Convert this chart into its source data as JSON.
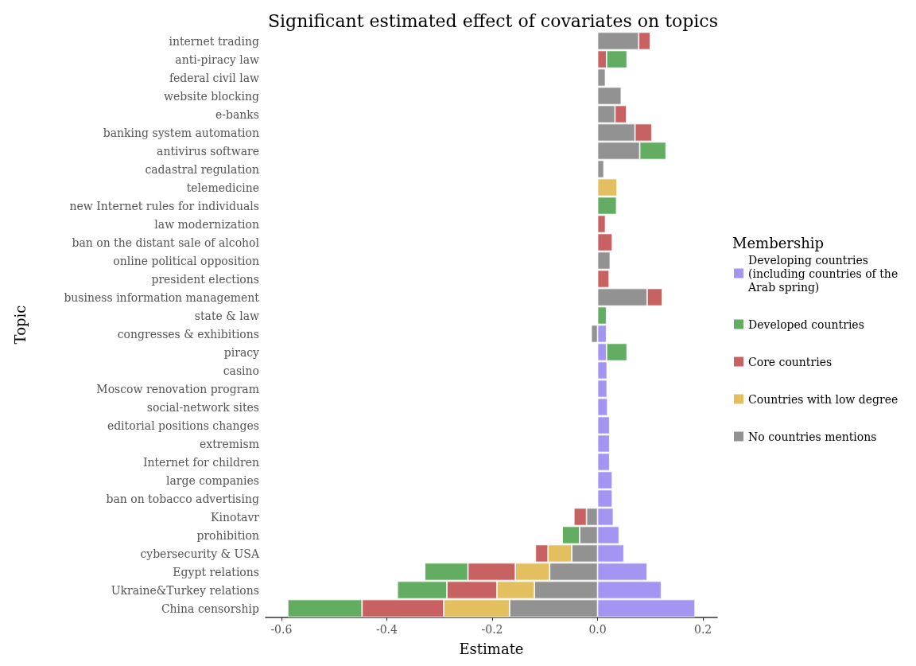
{
  "chart_data": {
    "type": "bar",
    "orientation": "horizontal",
    "stacked": true,
    "title": "Significant estimated effect of covariates on topics",
    "xlabel": "Estimate",
    "ylabel": "Topic",
    "legend_title": "Membership",
    "legend": "right",
    "grid": false,
    "categories": [
      "internet trading",
      "anti-piracy law",
      "federal civil law",
      "website blocking",
      "e-banks",
      "banking system automation",
      "antivirus software",
      "cadastral regulation",
      "telemedicine",
      "new Internet rules for individuals",
      "law modernization",
      "ban on the distant sale of alcohol",
      "online political opposition",
      "president elections",
      "business information management",
      "state & law",
      "congresses & exhibitions",
      "piracy",
      "casino",
      "Moscow renovation program",
      "social-network sites",
      "editorial positions changes",
      "extremism",
      "Internet for children",
      "large companies",
      "ban on tobacco advertising",
      "Kinotavr",
      "prohibition",
      "cybersecurity & USA",
      "Egypt relations",
      "Ukraine&Turkey relations",
      "China censorship"
    ],
    "xlim": [
      -0.63,
      0.227
    ],
    "xticks": [
      {
        "value": -0.6,
        "label": "-0.6"
      },
      {
        "value": -0.4,
        "label": "-0.4"
      },
      {
        "value": -0.2,
        "label": "-0.2"
      },
      {
        "value": 0,
        "label": "0.0"
      },
      {
        "value": 0.2,
        "label": "0.2"
      }
    ],
    "series": [
      {
        "name": "Developing countries (including countries of the Arab spring)",
        "color": "#a495f2",
        "values": [
          null,
          null,
          null,
          null,
          null,
          null,
          null,
          null,
          null,
          null,
          null,
          null,
          null,
          null,
          null,
          null,
          0.017,
          0.017,
          0.018,
          0.018,
          0.019,
          0.023,
          0.023,
          0.023,
          0.028,
          0.028,
          0.03,
          0.041,
          0.05,
          0.094,
          0.121,
          0.185
        ]
      },
      {
        "name": "No countries mentions",
        "color": "#929292",
        "values": [
          0.078,
          null,
          0.015,
          0.045,
          0.033,
          0.071,
          0.08,
          0.012,
          null,
          null,
          null,
          null,
          0.024,
          null,
          0.094,
          null,
          -0.012,
          null,
          null,
          null,
          null,
          null,
          null,
          null,
          null,
          null,
          -0.021,
          -0.034,
          -0.049,
          -0.091,
          -0.12,
          -0.167
        ]
      },
      {
        "name": "Countries with low degree",
        "color": "#e3bf60",
        "values": [
          null,
          null,
          null,
          null,
          null,
          null,
          null,
          null,
          0.037,
          null,
          null,
          null,
          null,
          null,
          null,
          null,
          null,
          null,
          null,
          null,
          null,
          null,
          null,
          null,
          null,
          null,
          null,
          null,
          -0.045,
          -0.065,
          -0.071,
          -0.125
        ]
      },
      {
        "name": "Core countries",
        "color": "#c86262",
        "values": [
          0.022,
          0.017,
          null,
          null,
          0.022,
          0.032,
          null,
          null,
          null,
          null,
          0.015,
          0.028,
          null,
          0.022,
          0.029,
          null,
          null,
          null,
          null,
          null,
          null,
          null,
          null,
          null,
          null,
          null,
          -0.024,
          null,
          -0.024,
          -0.09,
          -0.095,
          -0.155
        ]
      },
      {
        "name": "Developed countries",
        "color": "#62ad61",
        "values": [
          null,
          0.039,
          null,
          null,
          null,
          null,
          0.05,
          null,
          null,
          0.036,
          null,
          null,
          null,
          null,
          null,
          0.017,
          null,
          0.039,
          null,
          null,
          null,
          null,
          null,
          null,
          null,
          null,
          null,
          -0.033,
          null,
          -0.082,
          -0.094,
          -0.141
        ]
      }
    ]
  }
}
